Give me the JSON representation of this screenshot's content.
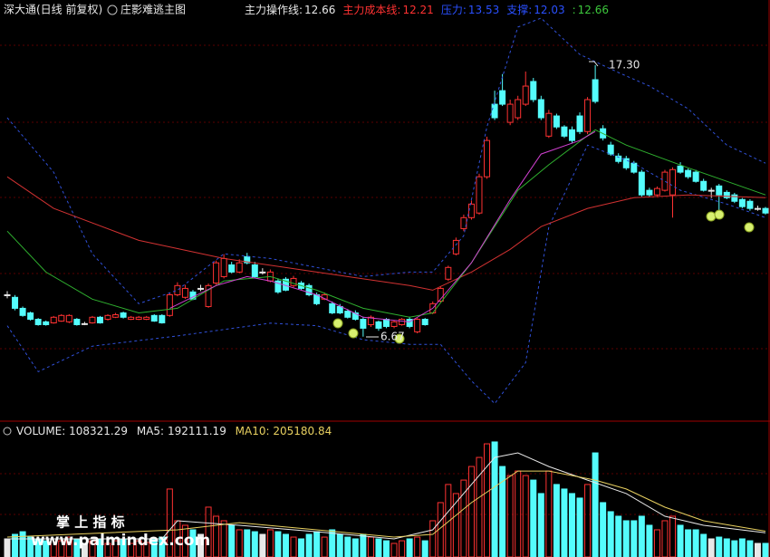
{
  "chart_data": {
    "type": "candlestick",
    "stock_title": "深大通(日线 前复权)",
    "indicator_title": "庄影难逃主图",
    "legend": [
      {
        "label": "主力操作线:",
        "value": 12.66,
        "color": "#e8e8e8"
      },
      {
        "label": "主力成本线:",
        "value": 12.21,
        "color": "#ff3232"
      },
      {
        "label": "压力:",
        "value": 13.53,
        "color": "#2a50ff"
      },
      {
        "label": "支撑:",
        "value": 12.03,
        "color": "#2a50ff"
      },
      {
        "label": ":",
        "value": 12.66,
        "color": "#3cc83c"
      }
    ],
    "ylim": [
      3.54,
      19.85
    ],
    "up_color": "#ff3232",
    "down_color": "#54fcfc",
    "flat_color": "#e8e8e8",
    "high_label": "17.30",
    "low_label": "6.67",
    "candles": [
      [
        8.31,
        8.31,
        8.45,
        8.17
      ],
      [
        8.21,
        7.78,
        8.3,
        7.7
      ],
      [
        7.78,
        7.5,
        7.85,
        7.45
      ],
      [
        7.6,
        7.35,
        7.65,
        7.3
      ],
      [
        7.35,
        7.14,
        7.4,
        7.1
      ],
      [
        7.25,
        7.14,
        7.3,
        7.1
      ],
      [
        7.21,
        7.43,
        7.48,
        7.18
      ],
      [
        7.28,
        7.5,
        7.55,
        7.25
      ],
      [
        7.25,
        7.5,
        7.55,
        7.2
      ],
      [
        7.35,
        7.14,
        7.4,
        7.1
      ],
      [
        7.18,
        7.18,
        7.25,
        7.12
      ],
      [
        7.21,
        7.43,
        7.48,
        7.18
      ],
      [
        7.43,
        7.21,
        7.48,
        7.18
      ],
      [
        7.35,
        7.5,
        7.55,
        7.3
      ],
      [
        7.43,
        7.53,
        7.6,
        7.4
      ],
      [
        7.6,
        7.43,
        7.65,
        7.38
      ],
      [
        7.35,
        7.43,
        7.48,
        7.32
      ],
      [
        7.35,
        7.43,
        7.48,
        7.32
      ],
      [
        7.35,
        7.43,
        7.48,
        7.32
      ],
      [
        7.5,
        7.28,
        7.55,
        7.25
      ],
      [
        7.5,
        7.21,
        7.55,
        7.18
      ],
      [
        7.5,
        8.31,
        8.4,
        7.45
      ],
      [
        8.31,
        8.67,
        8.8,
        8.25
      ],
      [
        8.21,
        8.56,
        8.7,
        8.15
      ],
      [
        8.42,
        8.14,
        8.5,
        8.1
      ],
      [
        8.56,
        8.56,
        8.7,
        8.45
      ],
      [
        7.85,
        8.67,
        8.75,
        7.8
      ],
      [
        8.77,
        9.56,
        9.65,
        8.7
      ],
      [
        9.02,
        9.73,
        9.9,
        8.95
      ],
      [
        9.48,
        9.2,
        9.6,
        9.15
      ],
      [
        9.2,
        9.56,
        9.7,
        9.15
      ],
      [
        9.8,
        9.56,
        9.95,
        9.5
      ],
      [
        9.48,
        9.02,
        9.6,
        8.95
      ],
      [
        9.2,
        9.2,
        9.35,
        9.1
      ],
      [
        8.85,
        9.2,
        9.3,
        8.8
      ],
      [
        8.85,
        8.42,
        8.95,
        8.35
      ],
      [
        8.92,
        8.49,
        9.0,
        8.45
      ],
      [
        8.67,
        8.95,
        9.05,
        8.6
      ],
      [
        8.77,
        8.56,
        8.85,
        8.5
      ],
      [
        8.67,
        8.31,
        8.75,
        8.25
      ],
      [
        8.31,
        7.96,
        8.4,
        7.9
      ],
      [
        8.14,
        8.31,
        8.4,
        8.1
      ],
      [
        7.96,
        7.6,
        8.05,
        7.55
      ],
      [
        7.85,
        7.6,
        7.95,
        7.55
      ],
      [
        7.67,
        7.43,
        7.75,
        7.38
      ],
      [
        7.6,
        7.35,
        7.7,
        7.3
      ],
      [
        7.35,
        7.0,
        7.45,
        6.67
      ],
      [
        7.14,
        7.43,
        7.5,
        7.05
      ],
      [
        7.25,
        7.0,
        7.3,
        6.9
      ],
      [
        7.35,
        7.07,
        7.4,
        7.0
      ],
      [
        7.07,
        7.25,
        7.3,
        7.0
      ],
      [
        7.14,
        7.35,
        7.4,
        7.1
      ],
      [
        7.35,
        7.07,
        7.45,
        7.0
      ],
      [
        6.86,
        7.35,
        7.4,
        6.8
      ],
      [
        7.35,
        7.14,
        7.4,
        7.1
      ],
      [
        7.6,
        7.96,
        8.05,
        7.55
      ],
      [
        8.06,
        8.56,
        8.65,
        8.0
      ],
      [
        8.92,
        9.38,
        9.45,
        8.85
      ],
      [
        9.91,
        10.44,
        10.55,
        9.85
      ],
      [
        10.9,
        11.33,
        11.45,
        10.8
      ],
      [
        11.33,
        11.86,
        12.0,
        11.25
      ],
      [
        11.51,
        12.93,
        13.05,
        11.45
      ],
      [
        12.93,
        14.35,
        14.5,
        12.85
      ],
      [
        15.77,
        15.24,
        16.3,
        15.15
      ],
      [
        16.3,
        15.77,
        16.95,
        15.7
      ],
      [
        15.06,
        15.77,
        15.95,
        14.95
      ],
      [
        15.24,
        15.95,
        16.1,
        15.15
      ],
      [
        15.77,
        16.48,
        17.05,
        15.7
      ],
      [
        16.66,
        15.95,
        16.8,
        15.85
      ],
      [
        15.95,
        15.24,
        16.1,
        15.15
      ],
      [
        14.52,
        15.41,
        15.55,
        14.45
      ],
      [
        15.31,
        14.88,
        15.4,
        14.8
      ],
      [
        14.88,
        14.52,
        14.95,
        14.45
      ],
      [
        14.77,
        14.35,
        14.9,
        14.25
      ],
      [
        15.31,
        14.7,
        15.45,
        14.6
      ],
      [
        14.7,
        15.95,
        16.05,
        14.6
      ],
      [
        16.73,
        15.88,
        17.3,
        15.8
      ],
      [
        14.81,
        14.45,
        14.95,
        14.35
      ],
      [
        14.17,
        13.82,
        14.3,
        13.75
      ],
      [
        13.74,
        13.53,
        13.85,
        13.45
      ],
      [
        13.64,
        13.28,
        13.75,
        13.2
      ],
      [
        13.46,
        13.11,
        13.55,
        13.05
      ],
      [
        13.11,
        12.22,
        13.2,
        12.15
      ],
      [
        12.4,
        12.22,
        12.5,
        12.15
      ],
      [
        12.22,
        12.47,
        12.55,
        12.15
      ],
      [
        12.4,
        13.11,
        13.2,
        12.35
      ],
      [
        12.22,
        13.21,
        13.3,
        11.33
      ],
      [
        13.35,
        13.11,
        13.5,
        13.05
      ],
      [
        13.18,
        12.93,
        13.25,
        12.85
      ],
      [
        13.11,
        12.75,
        13.2,
        12.7
      ],
      [
        12.75,
        12.4,
        12.85,
        12.35
      ],
      [
        12.4,
        12.4,
        12.5,
        12.1
      ],
      [
        12.57,
        12.22,
        12.65,
        11.6
      ],
      [
        12.32,
        12.11,
        12.4,
        12.05
      ],
      [
        12.22,
        11.97,
        12.3,
        11.9
      ],
      [
        12.04,
        11.76,
        12.1,
        11.7
      ],
      [
        11.97,
        11.69,
        12.05,
        11.6
      ],
      [
        11.69,
        11.69,
        11.8,
        11.6
      ],
      [
        11.69,
        11.51,
        11.75,
        11.45
      ]
    ],
    "lines": [
      {
        "color": "#3050d8",
        "dashed": true,
        "x": [
          0,
          6,
          11,
          17,
          22,
          28,
          34,
          40,
          46,
          52,
          55,
          59,
          62,
          66,
          69,
          74,
          79,
          83,
          88,
          93,
          98
        ],
        "values": [
          15.24,
          13.11,
          9.91,
          7.96,
          8.49,
          9.91,
          9.73,
          9.38,
          9.02,
          9.2,
          9.2,
          10.62,
          14.88,
          18.79,
          19.14,
          17.72,
          17.01,
          16.48,
          15.59,
          14.17,
          13.46
        ]
      },
      {
        "color": "#3050d8",
        "dashed": true,
        "x": [
          0,
          4,
          11,
          22,
          34,
          40,
          46,
          52,
          56,
          60,
          63,
          67,
          70,
          75,
          81,
          87,
          93,
          98
        ],
        "values": [
          7.1,
          5.3,
          6.3,
          6.7,
          7.2,
          7.1,
          6.55,
          6.37,
          6.37,
          4.94,
          4.05,
          5.65,
          10.98,
          14.17,
          13.46,
          12.4,
          11.86,
          11.33
        ]
      },
      {
        "color": "#d23232",
        "dashed": false,
        "x": [
          0,
          6,
          17,
          28,
          40,
          52,
          55,
          60,
          65,
          69,
          75,
          81,
          88,
          98
        ],
        "values": [
          12.93,
          11.69,
          10.44,
          9.73,
          9.2,
          8.67,
          8.49,
          9.2,
          10.09,
          10.98,
          11.69,
          12.11,
          12.22,
          12.11
        ]
      },
      {
        "color": "#2fb02f",
        "dashed": false,
        "x": [
          0,
          5,
          11,
          17,
          22,
          28,
          34,
          40,
          46,
          52,
          55,
          60,
          66,
          70,
          76,
          80,
          88,
          93,
          98
        ],
        "values": [
          10.8,
          9.2,
          8.14,
          7.6,
          7.78,
          8.85,
          9.02,
          8.49,
          7.78,
          7.43,
          7.6,
          9.56,
          12.4,
          13.4,
          14.77,
          14.17,
          13.28,
          12.75,
          12.22
        ]
      },
      {
        "color": "#d040d0",
        "dashed": false,
        "x": [
          21,
          27,
          31,
          34,
          40,
          46,
          52,
          55,
          60,
          65,
          69,
          74,
          76
        ],
        "values": [
          7.78,
          8.67,
          9.02,
          8.85,
          8.31,
          7.43,
          7.25,
          7.78,
          9.56,
          12.04,
          13.82,
          14.35,
          14.7
        ]
      }
    ],
    "volume_label": "VOLUME:",
    "volume_value": 108321.29,
    "ma5_label": "MA5:",
    "ma5_value": 192111.19,
    "ma10_label": "MA10:",
    "ma10_value": 205180.84,
    "volume_ylim": [
      0,
      1000000
    ],
    "volumes": [
      144000,
      180000,
      201000,
      158000,
      144000,
      129000,
      144000,
      129000,
      158000,
      144000,
      108000,
      129000,
      144000,
      108000,
      129000,
      144000,
      108000,
      129000,
      115000,
      144000,
      158000,
      540000,
      288000,
      252000,
      216000,
      180000,
      396000,
      324000,
      288000,
      252000,
      216000,
      216000,
      201000,
      180000,
      216000,
      201000,
      180000,
      158000,
      144000,
      180000,
      201000,
      158000,
      216000,
      180000,
      158000,
      144000,
      180000,
      158000,
      144000,
      129000,
      108000,
      129000,
      144000,
      158000,
      129000,
      288000,
      432000,
      576000,
      504000,
      611000,
      719000,
      791000,
      899000,
      914000,
      719000,
      647000,
      683000,
      647000,
      611000,
      504000,
      683000,
      576000,
      540000,
      504000,
      468000,
      576000,
      827000,
      432000,
      360000,
      324000,
      288000,
      288000,
      324000,
      252000,
      216000,
      288000,
      324000,
      252000,
      216000,
      216000,
      180000,
      144000,
      158000,
      144000,
      129000,
      144000,
      129000,
      108000,
      108321.29
    ],
    "volume_lines": [
      {
        "color": "#e8e8e8",
        "x": [
          0,
          20,
          22,
          30,
          40,
          50,
          55,
          60,
          63,
          66,
          70,
          75,
          80,
          85,
          90,
          98
        ],
        "values": [
          144000,
          144000,
          288000,
          252000,
          201000,
          144000,
          216000,
          576000,
          791000,
          827000,
          719000,
          611000,
          504000,
          324000,
          252000,
          192111.19
        ]
      },
      {
        "color": "#e8d060",
        "x": [
          0,
          22,
          30,
          40,
          50,
          55,
          60,
          66,
          70,
          76,
          80,
          85,
          90,
          98
        ],
        "values": [
          158000,
          216000,
          273000,
          216000,
          158000,
          180000,
          432000,
          683000,
          683000,
          611000,
          540000,
          396000,
          288000,
          205180.84
        ]
      }
    ],
    "watermark_title": "掌 上 指 标",
    "watermark_url": "www.palmindex.com"
  }
}
